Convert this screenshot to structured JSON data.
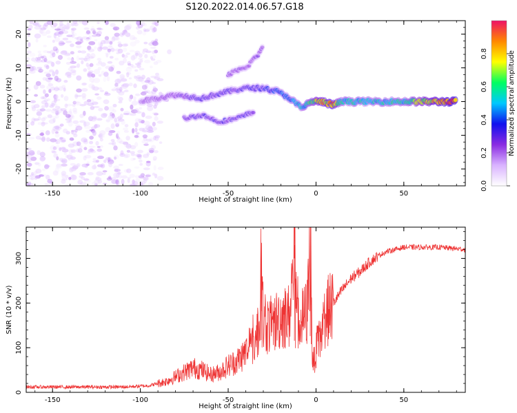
{
  "title": "S120.2022.014.06.57.G18",
  "colors": {
    "snr_line": "#ee3333",
    "colormap": [
      "#ffffff",
      "#d9b3ff",
      "#8a2be2",
      "#1010ee",
      "#00c8ff",
      "#00ff60",
      "#ffff00",
      "#ff8800",
      "#ee1166"
    ]
  },
  "chart_data": [
    {
      "type": "heatmap",
      "xlabel": "Height of straight line (km)",
      "ylabel": "Frequency (Hz)",
      "xlim": [
        -165,
        85
      ],
      "ylim": [
        -25,
        24
      ],
      "xticks": [
        -150,
        -100,
        -50,
        0,
        50
      ],
      "yticks": [
        -20,
        -10,
        0,
        10,
        20
      ],
      "colorbar": {
        "label": "Normalized spectral amplitude",
        "range": [
          0,
          1
        ],
        "ticks": [
          0.0,
          0.2,
          0.4,
          0.6,
          0.8
        ]
      },
      "features": [
        {
          "name": "noise",
          "x_range": [
            -165,
            -90
          ],
          "freq_range": [
            -25,
            24
          ],
          "amplitude": 0.15
        },
        {
          "name": "main_trace",
          "points": [
            [
              -100,
              0
            ],
            [
              -80,
              2
            ],
            [
              -65,
              1
            ],
            [
              -50,
              3
            ],
            [
              -40,
              4
            ],
            [
              -30,
              4
            ],
            [
              -22,
              3
            ],
            [
              -15,
              1
            ],
            [
              -8,
              -2
            ],
            [
              -3,
              0
            ],
            [
              3,
              0
            ],
            [
              10,
              -1
            ],
            [
              15,
              0
            ],
            [
              30,
              0
            ],
            [
              50,
              0
            ],
            [
              65,
              0
            ],
            [
              80,
              0
            ]
          ],
          "amplitude_at_points": [
            0.2,
            0.25,
            0.3,
            0.3,
            0.3,
            0.35,
            0.4,
            0.45,
            0.5,
            0.6,
            0.75,
            0.8,
            0.55,
            0.5,
            0.55,
            0.75,
            0.9
          ]
        },
        {
          "name": "upper_branch",
          "points": [
            [
              -50,
              8
            ],
            [
              -40,
              10
            ],
            [
              -33,
              14
            ],
            [
              -30,
              16
            ]
          ],
          "amplitude": 0.25
        },
        {
          "name": "lower_branch",
          "points": [
            [
              -75,
              -5
            ],
            [
              -65,
              -4
            ],
            [
              -55,
              -6
            ],
            [
              -45,
              -5
            ],
            [
              -35,
              -3
            ]
          ],
          "amplitude": 0.3
        }
      ]
    },
    {
      "type": "line",
      "xlabel": "Height of straight line (km)",
      "ylabel": "SNR (10 * v/v)",
      "xlim": [
        -165,
        85
      ],
      "ylim": [
        0,
        370
      ],
      "xticks": [
        -150,
        -100,
        -50,
        0,
        50
      ],
      "yticks": [
        0,
        100,
        200,
        300
      ],
      "series": [
        {
          "x": [
            -165,
            -150,
            -130,
            -110,
            -95,
            -85,
            -75,
            -70,
            -65,
            -60,
            -55,
            -50,
            -45,
            -40,
            -35,
            -32,
            -31,
            -30,
            -25,
            -20,
            -15,
            -12,
            -10,
            -5,
            -3,
            -2,
            0,
            3,
            5,
            10,
            15,
            20,
            25,
            30,
            35,
            40,
            50,
            60,
            70,
            85
          ],
          "y": [
            12,
            12,
            12,
            12,
            15,
            25,
            45,
            55,
            50,
            40,
            45,
            60,
            70,
            90,
            110,
            150,
            335,
            150,
            150,
            170,
            170,
            330,
            150,
            180,
            360,
            60,
            90,
            130,
            170,
            200,
            230,
            255,
            270,
            290,
            305,
            315,
            325,
            325,
            325,
            320
          ]
        }
      ]
    }
  ]
}
